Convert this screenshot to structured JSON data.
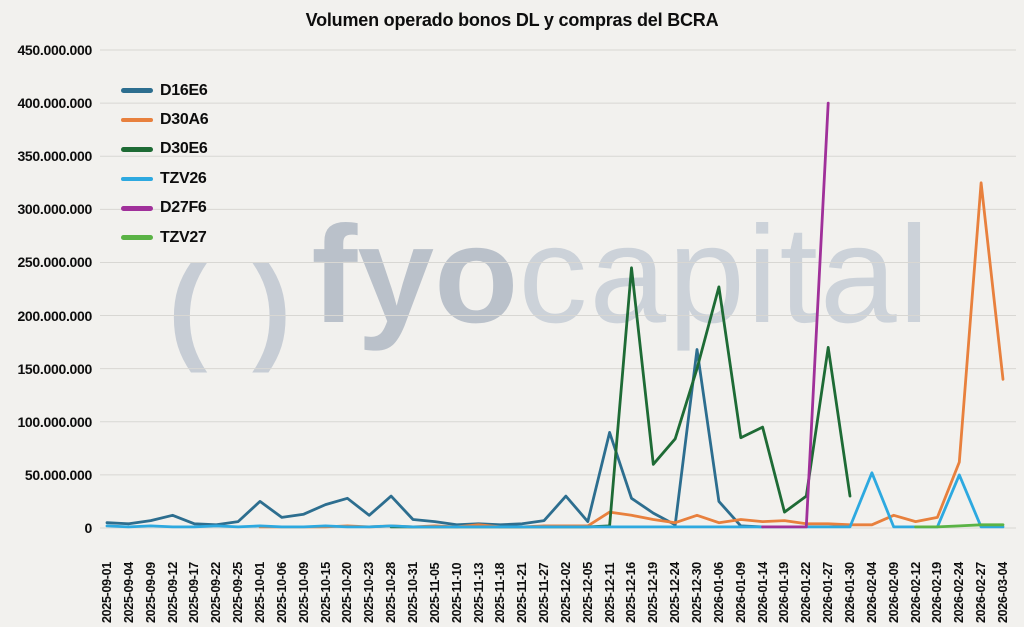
{
  "title": "Volumen operado bonos DL y compras del BCRA",
  "watermark": {
    "prefix": "( )",
    "bold": "fyo",
    "light": "capital"
  },
  "chart_data": {
    "type": "line",
    "title": "Volumen operado bonos DL y compras del BCRA",
    "xlabel": "",
    "ylabel": "",
    "ylim": [
      0,
      450000000
    ],
    "grid": true,
    "legend_position": "top-left",
    "x_tick_rotation": 90,
    "background_color": "#f2f1ee",
    "gridline_color": "#d8d7d3",
    "y_ticks": [
      "0",
      "50.000.000",
      "100.000.000",
      "150.000.000",
      "200.000.000",
      "250.000.000",
      "300.000.000",
      "350.000.000",
      "400.000.000",
      "450.000.000"
    ],
    "categories": [
      "2025-09-01",
      "2025-09-04",
      "2025-09-09",
      "2025-09-12",
      "2025-09-17",
      "2025-09-22",
      "2025-09-25",
      "2025-10-01",
      "2025-10-06",
      "2025-10-09",
      "2025-10-15",
      "2025-10-20",
      "2025-10-23",
      "2025-10-28",
      "2025-10-31",
      "2025-11-05",
      "2025-11-10",
      "2025-11-13",
      "2025-11-18",
      "2025-11-21",
      "2025-11-27",
      "2025-12-02",
      "2025-12-05",
      "2025-12-11",
      "2025-12-16",
      "2025-12-19",
      "2025-12-24",
      "2025-12-30",
      "2026-01-06",
      "2026-01-09",
      "2026-01-14",
      "2026-01-19",
      "2026-01-22",
      "2026-01-27",
      "2026-01-30",
      "2026-02-04",
      "2026-02-09",
      "2026-02-12",
      "2026-02-19",
      "2026-02-24",
      "2026-02-27",
      "2026-03-04"
    ],
    "series": [
      {
        "name": "D16E6",
        "color": "#2d6e8f",
        "values": [
          5000000,
          4000000,
          7000000,
          12000000,
          4000000,
          3000000,
          6000000,
          25000000,
          10000000,
          13000000,
          22000000,
          28000000,
          12000000,
          30000000,
          8000000,
          6000000,
          3000000,
          4000000,
          3000000,
          4000000,
          7000000,
          30000000,
          6000000,
          90000000,
          28000000,
          14000000,
          3000000,
          168000000,
          25000000,
          2000000,
          1000000,
          null,
          null,
          null,
          null,
          null,
          null,
          null,
          null,
          null,
          null,
          null
        ]
      },
      {
        "name": "D30A6",
        "color": "#e8803d",
        "values": [
          null,
          null,
          null,
          null,
          null,
          null,
          null,
          1000000,
          1000000,
          1000000,
          1000000,
          2000000,
          1000000,
          2000000,
          1000000,
          2000000,
          1000000,
          3000000,
          1000000,
          1000000,
          2000000,
          2000000,
          2000000,
          15000000,
          12000000,
          8000000,
          5000000,
          12000000,
          5000000,
          8000000,
          6000000,
          7000000,
          4000000,
          4000000,
          3000000,
          3000000,
          12000000,
          6000000,
          10000000,
          62000000,
          325000000,
          140000000
        ]
      },
      {
        "name": "D30E6",
        "color": "#1e6b35",
        "values": [
          null,
          null,
          null,
          null,
          null,
          null,
          null,
          null,
          null,
          null,
          null,
          null,
          null,
          1000000,
          1000000,
          1000000,
          1000000,
          1000000,
          1000000,
          1000000,
          1000000,
          1000000,
          1000000,
          2000000,
          245000000,
          60000000,
          84000000,
          150000000,
          227000000,
          85000000,
          95000000,
          15000000,
          30000000,
          170000000,
          30000000,
          null,
          null,
          null,
          null,
          null,
          null,
          null
        ]
      },
      {
        "name": "TZV26",
        "color": "#2da9e0",
        "values": [
          2000000,
          1000000,
          2000000,
          1000000,
          1000000,
          2000000,
          1000000,
          2000000,
          1000000,
          1000000,
          2000000,
          1000000,
          1000000,
          2000000,
          1000000,
          1000000,
          1000000,
          1000000,
          1000000,
          1000000,
          1000000,
          1000000,
          1000000,
          1000000,
          1000000,
          1000000,
          1000000,
          1000000,
          1000000,
          1000000,
          1000000,
          1000000,
          1000000,
          1000000,
          1000000,
          52000000,
          1000000,
          1000000,
          1000000,
          50000000,
          1000000,
          1000000
        ]
      },
      {
        "name": "D27F6",
        "color": "#a0309a",
        "values": [
          null,
          null,
          null,
          null,
          null,
          null,
          null,
          null,
          null,
          null,
          null,
          null,
          null,
          null,
          null,
          null,
          null,
          null,
          null,
          null,
          null,
          null,
          null,
          null,
          null,
          null,
          null,
          null,
          null,
          null,
          1000000,
          1000000,
          1000000,
          400000000,
          null,
          null,
          null,
          null,
          null,
          null,
          null,
          null
        ]
      },
      {
        "name": "TZV27",
        "color": "#5ab345",
        "values": [
          null,
          null,
          null,
          null,
          null,
          null,
          null,
          null,
          null,
          null,
          null,
          null,
          null,
          null,
          null,
          null,
          null,
          null,
          null,
          null,
          null,
          null,
          null,
          null,
          null,
          null,
          null,
          null,
          null,
          null,
          null,
          null,
          null,
          null,
          null,
          null,
          null,
          1000000,
          1000000,
          2000000,
          3000000,
          3000000
        ]
      }
    ]
  }
}
